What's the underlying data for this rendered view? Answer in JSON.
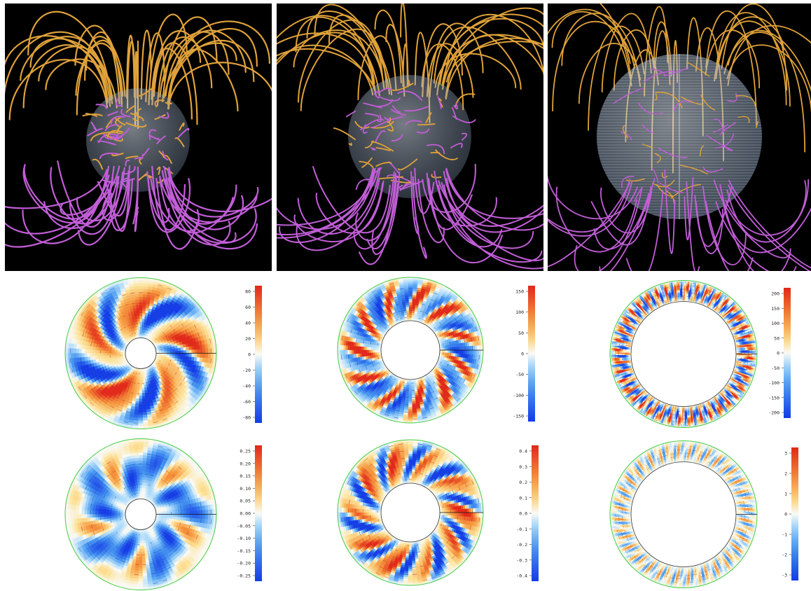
{
  "colors": {
    "background": "#ffffff",
    "field_line_positive": "#e0a23a",
    "field_line_negative": "#c25ed8",
    "sphere": "#b9c9dc",
    "contour_positive": "#e0442a",
    "contour_negative": "#2f6fd8",
    "contour_zero": "#44cc44"
  },
  "top_row": [
    {
      "name": "field-lines-dipolar-thick-shell"
    },
    {
      "name": "field-lines-dipolar-medium-shell"
    },
    {
      "name": "field-lines-multipolar-thin-shell"
    }
  ],
  "colorbars": [
    {
      "name": "row2-col1",
      "ticks": [
        "80",
        "60",
        "40",
        "20",
        "0",
        "-20",
        "-40",
        "-60",
        "-80"
      ]
    },
    {
      "name": "row2-col2",
      "ticks": [
        "150",
        "100",
        "50",
        "0",
        "-50",
        "-100",
        "-150"
      ]
    },
    {
      "name": "row2-col3",
      "ticks": [
        "200",
        "150",
        "100",
        "50",
        "0",
        "-50",
        "-100",
        "-150",
        "-200"
      ]
    },
    {
      "name": "row3-col1",
      "ticks": [
        "0.25",
        "0.20",
        "0.15",
        "0.10",
        "0.05",
        "0.00",
        "-0.05",
        "-0.10",
        "-0.15",
        "-0.20",
        "-0.25"
      ]
    },
    {
      "name": "row3-col2",
      "ticks": [
        "0.4",
        "0.3",
        "0.2",
        "0.1",
        "0.0",
        "-0.1",
        "-0.2",
        "-0.3",
        "-0.4"
      ]
    },
    {
      "name": "row3-col3",
      "ticks": [
        "3",
        "2",
        "1",
        "0",
        "-1",
        "-2",
        "-3"
      ]
    }
  ]
}
